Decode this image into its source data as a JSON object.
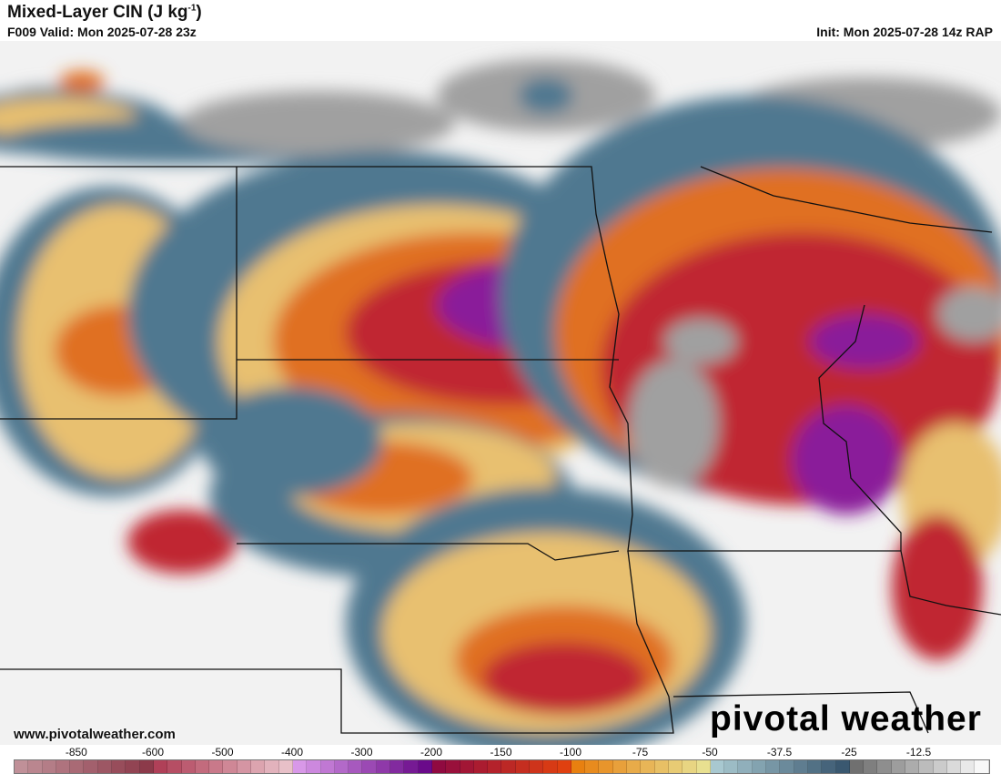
{
  "header": {
    "title": "Mixed-Layer CIN (J kg",
    "title_sup": "-1",
    "title_close": ")",
    "valid": "F009 Valid: Mon 2025-07-28 23z",
    "init": "Init: Mon 2025-07-28 14z RAP"
  },
  "footer": {
    "url": "www.pivotalweather.com",
    "logo": "pivotal weather"
  },
  "colorbar": {
    "ticks": [
      "-850",
      "-600",
      "-500",
      "-400",
      "-300",
      "-200",
      "-150",
      "-100",
      "-75",
      "-50",
      "-37.5",
      "-25",
      "-12.5"
    ],
    "groups": [
      {
        "from": "#c09098",
        "to": "#8c3a4a"
      },
      {
        "from": "#b04058",
        "to": "#e8c0c8"
      },
      {
        "from": "#d898e8",
        "to": "#6a0a8a"
      },
      {
        "from": "#900a40",
        "to": "#e04010"
      },
      {
        "from": "#e88010",
        "to": "#e8e090"
      },
      {
        "from": "#a8c8d0",
        "to": "#3a5870"
      },
      {
        "from": "#707070",
        "to": "#f8f8f8"
      }
    ]
  },
  "map": {
    "field": "Mixed-Layer CIN",
    "colors": {
      "weak": "#e8c070",
      "moderate": "#e07020",
      "strong": "#c02830",
      "extreme": "#8a1a9a",
      "peak": "#d898e0",
      "marginal": "#507890",
      "gray": "#a0a0a0"
    }
  }
}
